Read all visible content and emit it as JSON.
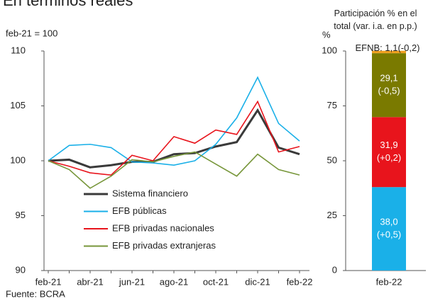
{
  "chart_data": [
    {
      "type": "line",
      "title": "En términos reales",
      "ylabel": "feb-21 = 100",
      "categories": [
        "feb-21",
        null,
        "abr-21",
        null,
        "jun-21",
        null,
        "ago-21",
        null,
        "oct-21",
        null,
        "dic-21",
        null,
        "feb-22"
      ],
      "ylim": [
        90,
        110
      ],
      "yticks": [
        90,
        95,
        100,
        105,
        110
      ],
      "series": [
        {
          "name": "Sistema financiero",
          "color": "#3a3a3a",
          "values": [
            100,
            100.1,
            99.4,
            99.6,
            99.9,
            99.9,
            100.6,
            100.7,
            101.3,
            101.7,
            104.6,
            101.2,
            100.6
          ]
        },
        {
          "name": "EFB públicas",
          "color": "#1ab0e8",
          "values": [
            100,
            101.4,
            101.5,
            101.2,
            99.9,
            99.8,
            99.6,
            100.0,
            101.5,
            103.9,
            107.6,
            103.4,
            101.8
          ]
        },
        {
          "name": "EFB privadas nacionales",
          "color": "#e8141c",
          "values": [
            100,
            99.5,
            98.9,
            98.7,
            100.5,
            100.0,
            102.2,
            101.6,
            102.8,
            102.4,
            105.4,
            100.8,
            101.3
          ]
        },
        {
          "name": "EFB privadas extranjeras",
          "color": "#77963a",
          "values": [
            100,
            99.2,
            97.5,
            98.6,
            100.1,
            99.9,
            100.4,
            100.8,
            99.7,
            98.6,
            100.6,
            99.2,
            98.7
          ]
        }
      ],
      "source": "Fuente: BCRA"
    },
    {
      "type": "stacked_bar",
      "title": "Participación % en el total (var. i.a. en p.p.)",
      "ylabel": "%",
      "categories": [
        "feb-22"
      ],
      "ylim": [
        0,
        100
      ],
      "yticks": [
        0,
        25,
        50,
        75,
        100
      ],
      "series": [
        {
          "color": "#1ab0e8",
          "values": [
            38.0
          ],
          "value_labels": [
            "38,0"
          ],
          "change_labels": [
            "(+0,5)"
          ]
        },
        {
          "color": "#e8141c",
          "values": [
            31.9
          ],
          "value_labels": [
            "31,9"
          ],
          "change_labels": [
            "(+0,2)"
          ]
        },
        {
          "color": "#7a7a00",
          "values": [
            29.1
          ],
          "value_labels": [
            "29,1"
          ],
          "change_labels": [
            "(-0,5)"
          ]
        },
        {
          "color": "#f0a020",
          "values": [
            1.1
          ],
          "value_labels": [
            "EFNB: 1,1(-0,2)"
          ]
        }
      ]
    }
  ]
}
